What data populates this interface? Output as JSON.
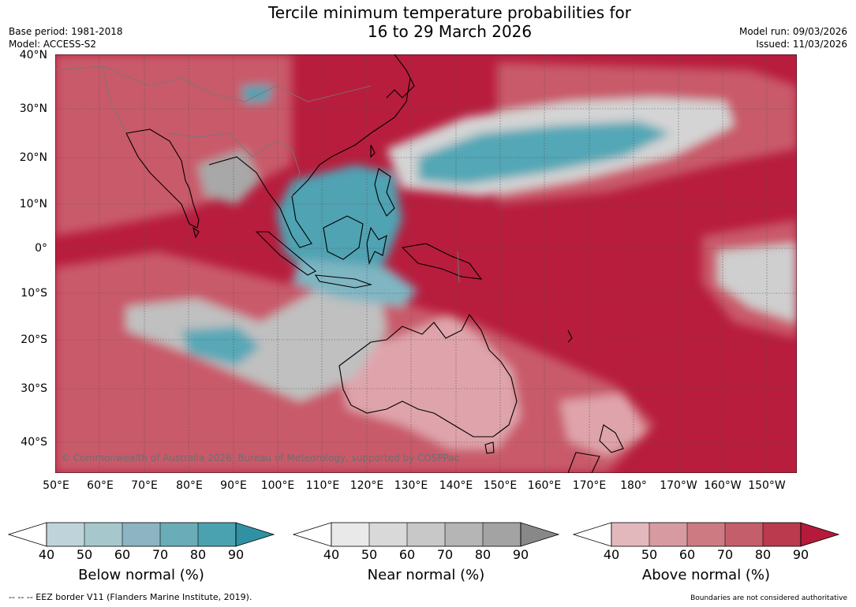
{
  "title": {
    "line1": "Tercile minimum temperature probabilities for",
    "line2": "16 to 29 March 2026"
  },
  "meta": {
    "base_period": "Base period: 1981-2018",
    "model": "Model: ACCESS-S2",
    "model_run": "Model run: 09/03/2026",
    "issued": "Issued: 11/03/2026"
  },
  "copyright": "© Commonwealth of Australia 2026, Bureau of Meteorology, supported by COSPPac",
  "lat_labels": [
    "40°N",
    "30°N",
    "20°N",
    "10°N",
    "0°",
    "10°S",
    "20°S",
    "30°S",
    "40°S"
  ],
  "lon_labels": [
    "50°E",
    "60°E",
    "70°E",
    "80°E",
    "90°E",
    "100°E",
    "110°E",
    "120°E",
    "130°E",
    "140°E",
    "150°E",
    "160°E",
    "170°E",
    "180°",
    "170°W",
    "160°W",
    "150°W"
  ],
  "colorbars": [
    {
      "label": "Below normal (%)",
      "ticks": [
        "40",
        "50",
        "60",
        "70",
        "80",
        "90"
      ],
      "colors": [
        "#bfd4da",
        "#a6c8cc",
        "#8cb4c2",
        "#6aacb8",
        "#4aa2b0",
        "#2f91a3"
      ]
    },
    {
      "label": "Near normal (%)",
      "ticks": [
        "40",
        "50",
        "60",
        "70",
        "80",
        "90"
      ],
      "colors": [
        "#e9e9e9",
        "#d9d9d9",
        "#c8c8c8",
        "#b5b5b5",
        "#a3a3a3",
        "#888888"
      ]
    },
    {
      "label": "Above normal (%)",
      "ticks": [
        "40",
        "50",
        "60",
        "70",
        "80",
        "90"
      ],
      "colors": [
        "#e3b8bd",
        "#d89aa1",
        "#cd7a83",
        "#c55e6b",
        "#bb3a4d",
        "#b61a3a"
      ]
    }
  ],
  "footer": {
    "left": "--  --  -- EEZ border V11 (Flanders Marine Institute, 2019).",
    "right": "Boundaries are not considered authoritative"
  },
  "colors": {
    "above_dark": "#b81d3d",
    "above_mid": "#c95a6a",
    "above_light": "#dfa4ab",
    "near_light": "#e2e2e2",
    "near_mid": "#c6c6c6",
    "near_dark": "#a2a2a2",
    "below_light": "#9cc3cb",
    "below_dark": "#2d95a8"
  }
}
